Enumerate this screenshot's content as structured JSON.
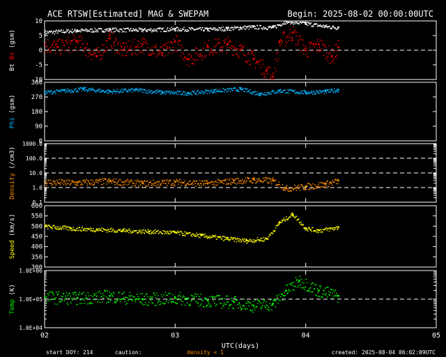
{
  "header": {
    "title": "ACE RTSW[Estimated] MAG & SWEPAM",
    "begin": "Begin: 2025-08-02 00:00:00UTC"
  },
  "footer": {
    "start_doy": "start DOY: 214",
    "caution": "caution:",
    "density_note": "density < 1",
    "created": "created: 2025-08-04 06:02:09UTC"
  },
  "colors": {
    "bt": "#ffffff",
    "bz": "#ff0000",
    "phi": "#00b4ff",
    "density": "#ff8c00",
    "speed": "#ffff00",
    "temp": "#00ff00",
    "axis": "#ffffff",
    "background": "#000000"
  },
  "chart_data": {
    "type": "scatter",
    "x_axis": {
      "label": "UTC(days)",
      "range": [
        2,
        5
      ],
      "ticks": [
        2,
        3,
        4,
        5
      ],
      "tick_labels": [
        "02",
        "03",
        "04",
        "05"
      ],
      "data_end": 4.25
    },
    "panels": [
      {
        "id": "mag",
        "ylabel_parts": [
          {
            "text": "Bt",
            "color": "#ffffff"
          },
          {
            "text": "Bz",
            "color": "#ff0000"
          },
          {
            "text": "(gsm)",
            "color": "#ffffff"
          }
        ],
        "scale": "linear",
        "ylim": [
          -10,
          10
        ],
        "ticks": [
          -10,
          -5,
          0,
          5,
          10
        ],
        "tick_labels": [
          "-10",
          "-5",
          "0",
          "5",
          "10"
        ],
        "dashed_lines": [
          0
        ],
        "series": [
          {
            "name": "Bt",
            "color": "#ffffff",
            "x": [
              2.0,
              2.25,
              2.5,
              2.75,
              3.0,
              3.25,
              3.4,
              3.5,
              3.6,
              3.75,
              3.85,
              4.0,
              4.15,
              4.25
            ],
            "y": [
              6.2,
              6.8,
              7.1,
              7.0,
              7.3,
              7.2,
              7.5,
              7.8,
              8.0,
              7.9,
              10.0,
              9.2,
              8.2,
              7.8
            ]
          },
          {
            "name": "Bz",
            "color": "#ff0000",
            "x": [
              2.0,
              2.1,
              2.25,
              2.4,
              2.5,
              2.6,
              2.75,
              2.9,
              3.0,
              3.1,
              3.25,
              3.4,
              3.5,
              3.6,
              3.7,
              3.75,
              3.8,
              3.9,
              4.0,
              4.1,
              4.2,
              4.25
            ],
            "y": [
              2,
              1,
              3,
              -2,
              4,
              0,
              2,
              -1,
              3,
              -3,
              1,
              2,
              0,
              -3,
              -7,
              -9,
              3,
              6,
              0,
              2,
              -2,
              1
            ]
          }
        ]
      },
      {
        "id": "phi",
        "ylabel_parts": [
          {
            "text": "Phi",
            "color": "#00b4ff"
          },
          {
            "text": "(gsm)",
            "color": "#ffffff"
          }
        ],
        "scale": "linear",
        "ylim": [
          0,
          360
        ],
        "ticks": [
          0,
          90,
          180,
          270,
          360
        ],
        "tick_labels": [
          "0",
          "90",
          "180",
          "270",
          "360"
        ],
        "series": [
          {
            "name": "Phi",
            "color": "#00b4ff",
            "x": [
              2.0,
              2.15,
              2.3,
              2.5,
              2.7,
              2.9,
              3.1,
              3.3,
              3.5,
              3.65,
              3.8,
              4.0,
              4.15,
              4.25
            ],
            "y": [
              300,
              310,
              320,
              305,
              315,
              300,
              295,
              310,
              320,
              290,
              310,
              300,
              305,
              315
            ]
          }
        ]
      },
      {
        "id": "density",
        "ylabel_parts": [
          {
            "text": "Density",
            "color": "#ff8c00"
          },
          {
            "text": "(/cm3)",
            "color": "#ffffff"
          }
        ],
        "scale": "log",
        "ylim": [
          0.1,
          1000
        ],
        "ticks": [
          0.1,
          1,
          10,
          100,
          1000
        ],
        "tick_labels": [
          "0.1",
          "1.0",
          "10.0",
          "100.0",
          "1000.0"
        ],
        "dashed_lines": [
          1,
          10,
          100
        ],
        "series": [
          {
            "name": "Density",
            "color": "#ff8c00",
            "x": [
              2.0,
              2.25,
              2.5,
              2.75,
              3.0,
              3.25,
              3.45,
              3.6,
              3.75,
              3.85,
              4.0,
              4.15,
              4.25
            ],
            "y": [
              2.5,
              2.2,
              2.8,
              2.0,
              2.5,
              2.0,
              3.0,
              3.5,
              3.0,
              0.9,
              1.2,
              1.8,
              3.0
            ]
          }
        ]
      },
      {
        "id": "speed",
        "ylabel_parts": [
          {
            "text": "Speed",
            "color": "#ffff00"
          },
          {
            "text": "(km/s)",
            "color": "#ffffff"
          }
        ],
        "scale": "linear",
        "ylim": [
          300,
          600
        ],
        "ticks": [
          300,
          350,
          400,
          450,
          500,
          550,
          600
        ],
        "tick_labels": [
          "300",
          "350",
          "400",
          "450",
          "500",
          "550",
          "600"
        ],
        "series": [
          {
            "name": "Speed",
            "color": "#ffff00",
            "x": [
              2.0,
              2.2,
              2.4,
              2.6,
              2.8,
              3.0,
              3.2,
              3.4,
              3.55,
              3.7,
              3.8,
              3.9,
              4.0,
              4.1,
              4.25
            ],
            "y": [
              500,
              490,
              485,
              480,
              475,
              470,
              455,
              440,
              430,
              440,
              520,
              560,
              490,
              480,
              495
            ]
          }
        ]
      },
      {
        "id": "temp",
        "ylabel_parts": [
          {
            "text": "Temp",
            "color": "#00ff00"
          },
          {
            "text": "(K)",
            "color": "#ffffff"
          }
        ],
        "scale": "log",
        "ylim": [
          10000,
          1000000
        ],
        "ticks": [
          10000,
          100000,
          1000000
        ],
        "tick_labels": [
          "1.0E+04",
          "1.0E+05",
          "1.0E+06"
        ],
        "dashed_lines": [
          100000
        ],
        "series": [
          {
            "name": "Temp",
            "color": "#00ff00",
            "x": [
              2.0,
              2.25,
              2.5,
              2.75,
              3.0,
              3.25,
              3.45,
              3.6,
              3.75,
              3.85,
              3.95,
              4.1,
              4.25
            ],
            "y": [
              120000,
              110000,
              130000,
              100000,
              110000,
              90000,
              80000,
              60000,
              70000,
              200000,
              450000,
              200000,
              130000
            ]
          }
        ]
      }
    ]
  }
}
